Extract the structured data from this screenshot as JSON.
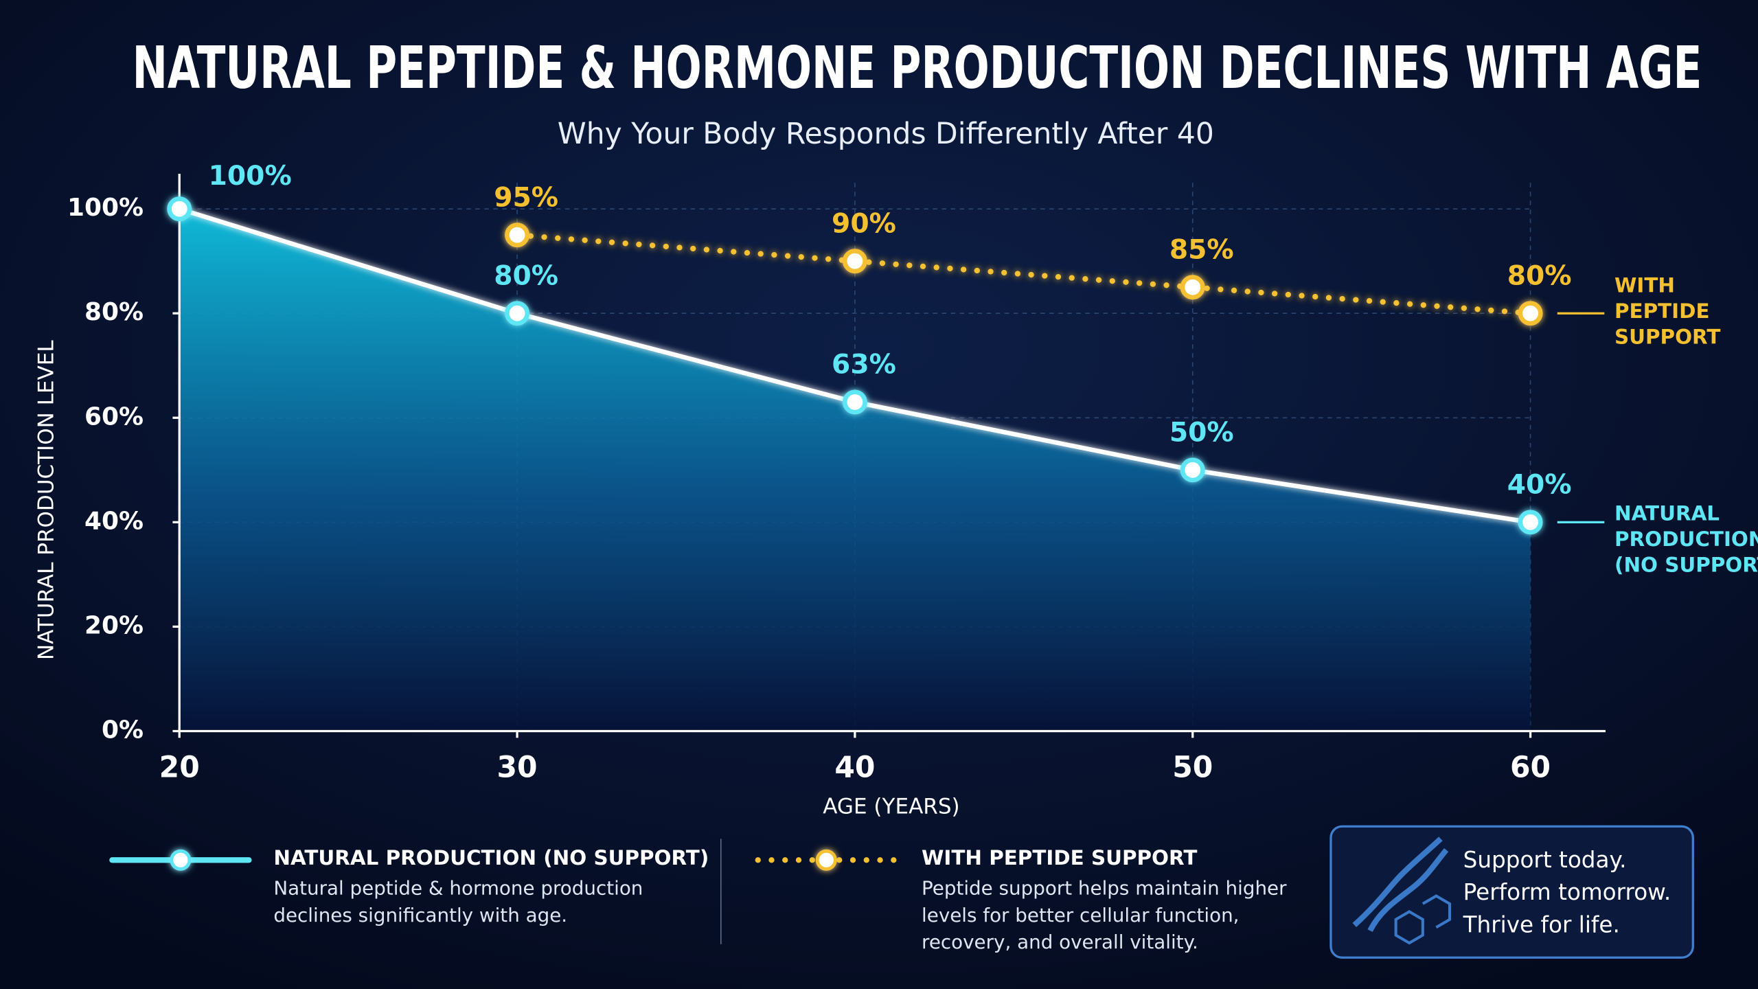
{
  "chart_data": {
    "type": "line",
    "title": "NATURAL PEPTIDE & HORMONE PRODUCTION DECLINES WITH AGE",
    "subtitle": "Why Your Body Responds Differently After 40",
    "x_label": "AGE (YEARS)",
    "y_label": "NATURAL PRODUCTION LEVEL",
    "x": [
      20,
      30,
      40,
      50,
      60
    ],
    "xlim": [
      20,
      62
    ],
    "xticks": [
      20,
      30,
      40,
      50,
      60
    ],
    "ylim": [
      0,
      105
    ],
    "yticks": [
      {
        "value": 0,
        "label": "0%"
      },
      {
        "value": 20,
        "label": "20%"
      },
      {
        "value": 40,
        "label": "40%"
      },
      {
        "value": 60,
        "label": "60%"
      },
      {
        "value": 80,
        "label": "80%"
      },
      {
        "value": 100,
        "label": "100%"
      }
    ],
    "grid": true,
    "series": [
      {
        "name": "NATURAL PRODUCTION (NO SUPPORT)",
        "color": "#5ee6f5",
        "line_style": "solid",
        "area": true,
        "values": [
          100,
          80,
          63,
          50,
          40
        ],
        "value_labels": [
          "100%",
          "80%",
          "63%",
          "50%",
          "40%"
        ],
        "end_label": [
          "NATURAL",
          "PRODUCTION",
          "(NO SUPPORT)"
        ],
        "description": [
          "Natural peptide & hormone production",
          "declines significantly with age."
        ]
      },
      {
        "name": "WITH PEPTIDE SUPPORT",
        "color": "#f5c030",
        "line_style": "dotted",
        "area": false,
        "values": [
          null,
          95,
          90,
          85,
          80
        ],
        "value_labels": [
          null,
          "95%",
          "90%",
          "85%",
          "80%"
        ],
        "end_label": [
          "WITH",
          "PEPTIDE",
          "SUPPORT"
        ],
        "description": [
          "Peptide support helps maintain higher",
          "levels for better cellular function,",
          "recovery, and overall vitality."
        ]
      }
    ],
    "tagline": [
      "Support today.",
      "Perform tomorrow.",
      "Thrive for life."
    ]
  }
}
